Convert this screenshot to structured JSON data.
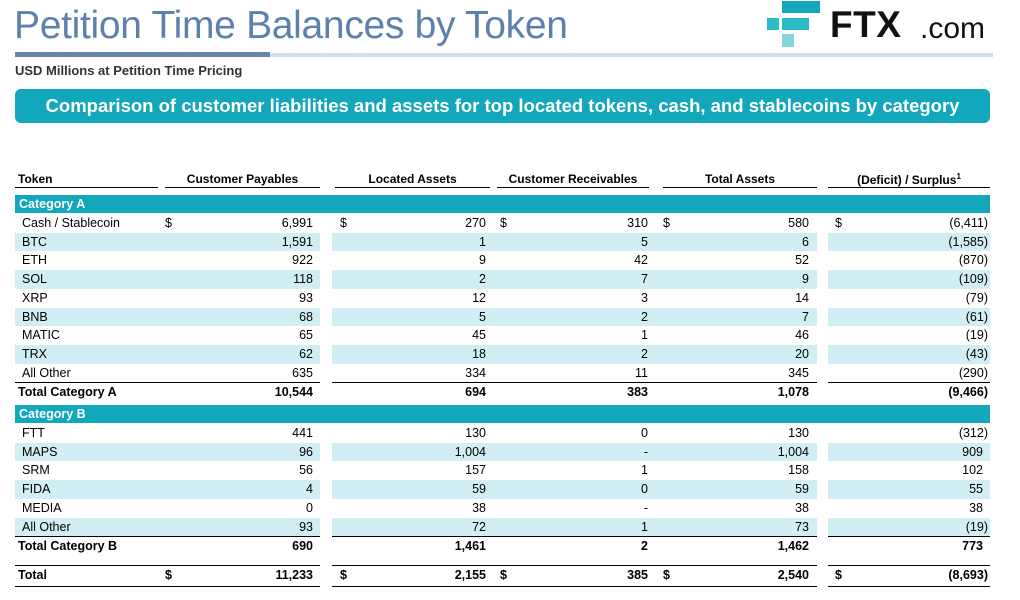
{
  "header": {
    "title": "Petition Time Balances by Token",
    "subtitle": "USD Millions at Petition Time Pricing",
    "banner": "Comparison of customer liabilities and assets for top located tokens, cash, and stablecoins by category",
    "logo": {
      "text": "FTX",
      "suffix": ".com"
    }
  },
  "colors": {
    "accent": "#12a7bb",
    "title": "#5d80ad",
    "stripe": "#d2eef5"
  },
  "table": {
    "columns": [
      "Token",
      "Customer Payables",
      "Located Assets",
      "Customer Receivables",
      "Total Assets",
      "(Deficit) / Surplus"
    ],
    "footnote_mark": "1",
    "currency": "$",
    "categories": [
      {
        "label": "Category A",
        "rows": [
          {
            "token": "Cash / Stablecoin",
            "values": [
              "6,991",
              "270",
              "310",
              "580",
              "(6,411)"
            ],
            "dollar": true
          },
          {
            "token": "BTC",
            "values": [
              "1,591",
              "1",
              "5",
              "6",
              "(1,585)"
            ]
          },
          {
            "token": "ETH",
            "values": [
              "922",
              "9",
              "42",
              "52",
              "(870)"
            ]
          },
          {
            "token": "SOL",
            "values": [
              "118",
              "2",
              "7",
              "9",
              "(109)"
            ]
          },
          {
            "token": "XRP",
            "values": [
              "93",
              "12",
              "3",
              "14",
              "(79)"
            ]
          },
          {
            "token": "BNB",
            "values": [
              "68",
              "5",
              "2",
              "7",
              "(61)"
            ]
          },
          {
            "token": "MATIC",
            "values": [
              "65",
              "45",
              "1",
              "46",
              "(19)"
            ]
          },
          {
            "token": "TRX",
            "values": [
              "62",
              "18",
              "2",
              "20",
              "(43)"
            ]
          },
          {
            "token": "All Other",
            "values": [
              "635",
              "334",
              "11",
              "345",
              "(290)"
            ]
          }
        ],
        "total": {
          "token": "Total Category A",
          "values": [
            "10,544",
            "694",
            "383",
            "1,078",
            "(9,466)"
          ]
        }
      },
      {
        "label": "Category B",
        "rows": [
          {
            "token": "FTT",
            "values": [
              "441",
              "130",
              "0",
              "130",
              "(312)"
            ]
          },
          {
            "token": "MAPS",
            "values": [
              "96",
              "1,004",
              "-",
              "1,004",
              "909"
            ]
          },
          {
            "token": "SRM",
            "values": [
              "56",
              "157",
              "1",
              "158",
              "102"
            ]
          },
          {
            "token": "FIDA",
            "values": [
              "4",
              "59",
              "0",
              "59",
              "55"
            ]
          },
          {
            "token": "MEDIA",
            "values": [
              "0",
              "38",
              "-",
              "38",
              "38"
            ]
          },
          {
            "token": "All Other",
            "values": [
              "93",
              "72",
              "1",
              "73",
              "(19)"
            ]
          }
        ],
        "total": {
          "token": "Total Category B",
          "values": [
            "690",
            "1,461",
            "2",
            "1,462",
            "773"
          ]
        }
      }
    ],
    "grand_total": {
      "token": "Total",
      "values": [
        "11,233",
        "2,155",
        "385",
        "2,540",
        "(8,693)"
      ],
      "dollar": true
    }
  }
}
